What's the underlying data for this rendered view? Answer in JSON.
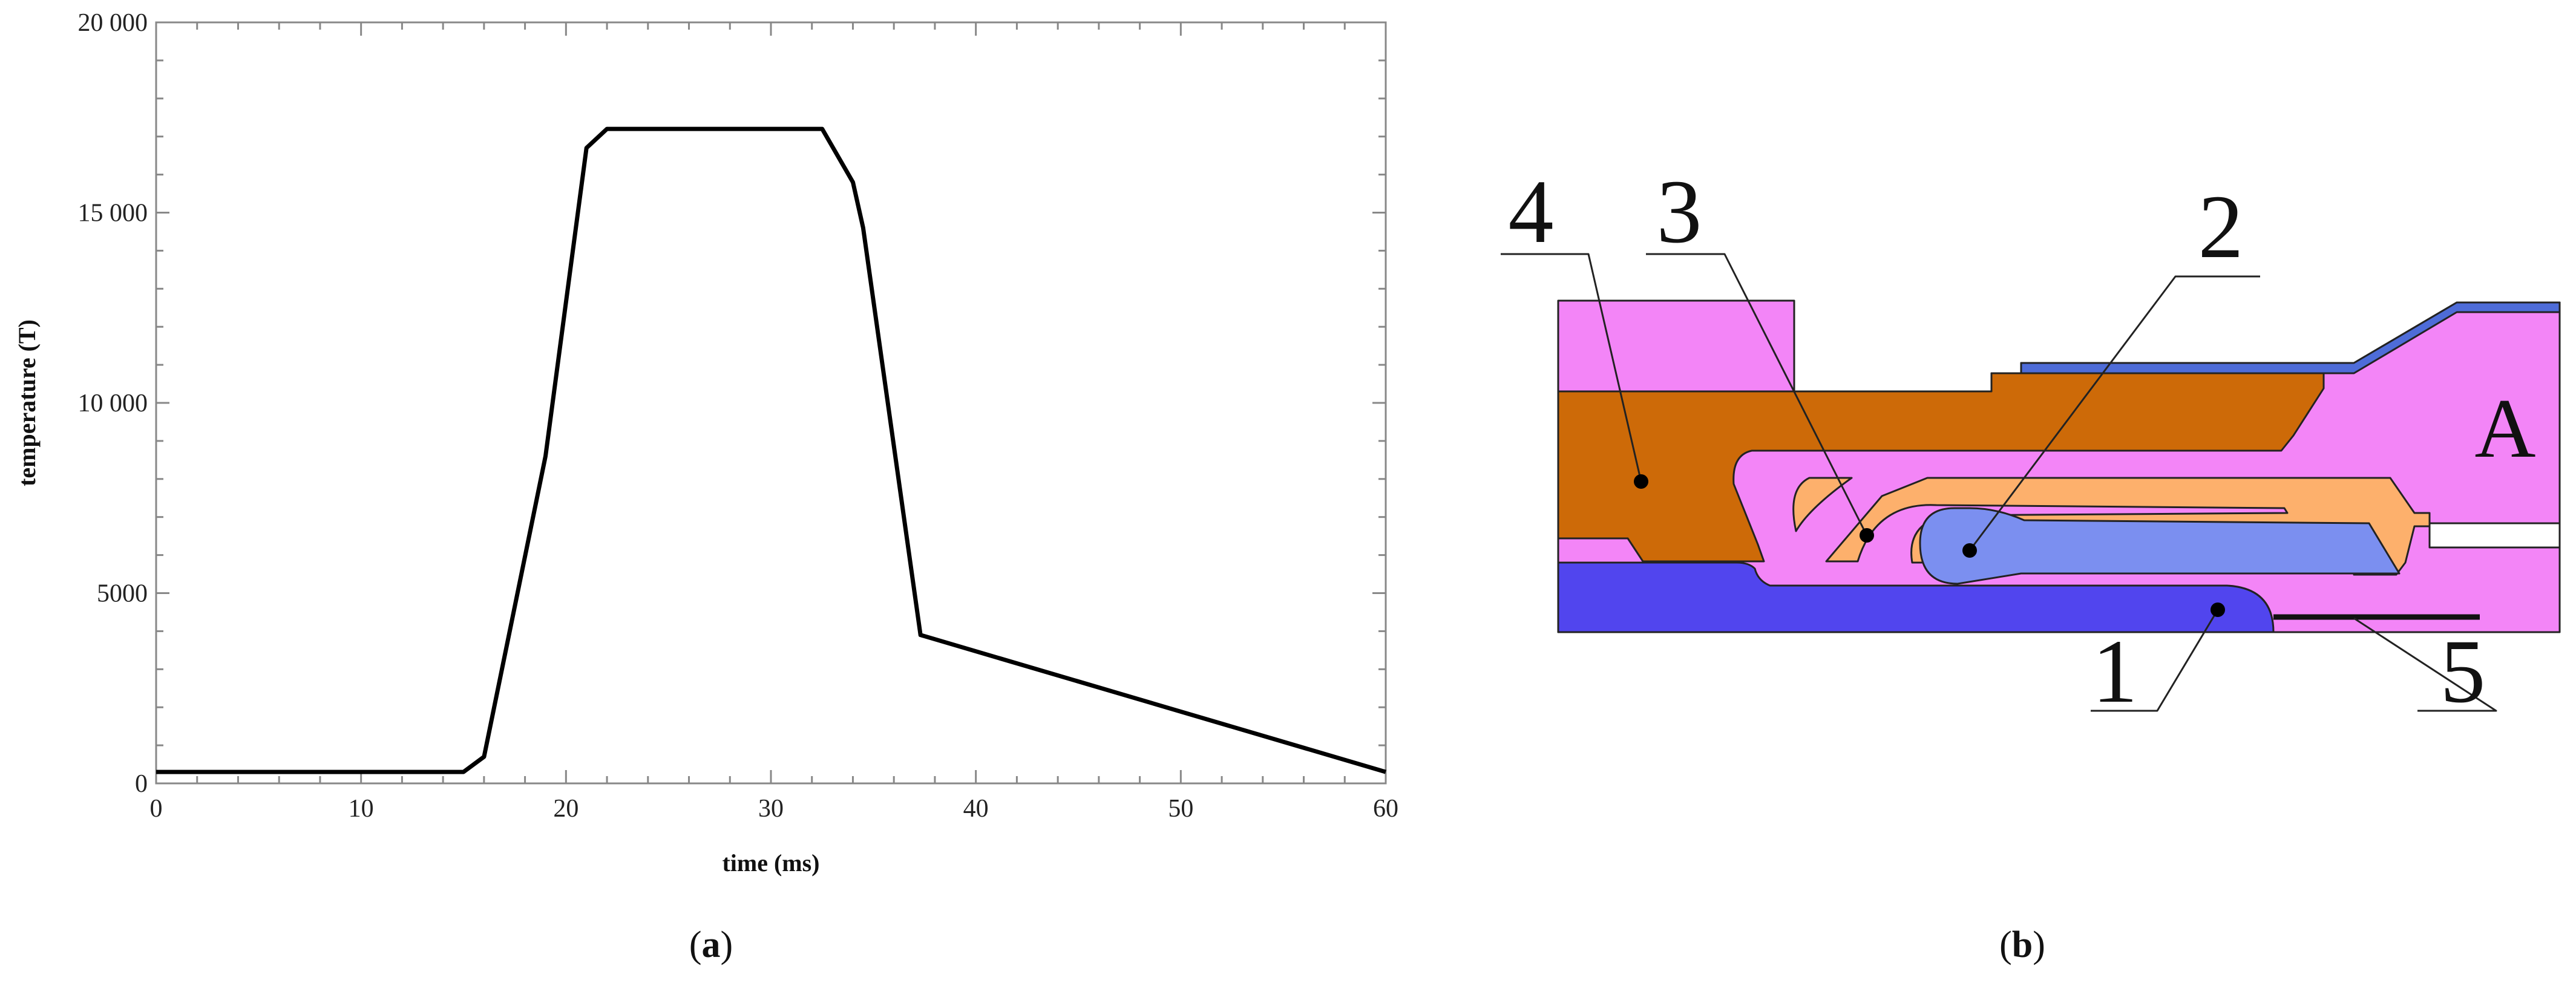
{
  "panel_a": {
    "caption_open": "(",
    "caption_letter": "a",
    "caption_close": ")"
  },
  "panel_b": {
    "caption_open": "(",
    "caption_letter": "b",
    "caption_close": ")",
    "part_labels": [
      "1",
      "2",
      "3",
      "4",
      "5"
    ],
    "region_label": "A",
    "colors": {
      "part_1": "#5145ee",
      "part_2": "#7b8ff0",
      "part_3": "#fdb06c",
      "part_4": "#cd6a08",
      "housing": "#f385f7",
      "top_strip": "#4e6cd8",
      "outline": "#222222"
    }
  },
  "chart_data": {
    "type": "line",
    "title": "",
    "xlabel": "time (ms)",
    "ylabel": "temperature (T)",
    "xlim": [
      0,
      60
    ],
    "ylim": [
      0,
      20000
    ],
    "xticks": [
      0,
      10,
      20,
      30,
      40,
      50,
      60
    ],
    "xtick_labels": [
      "0",
      "10",
      "20",
      "30",
      "40",
      "50",
      "60"
    ],
    "yticks": [
      0,
      5000,
      10000,
      15000,
      20000
    ],
    "ytick_labels": [
      "0",
      "5000",
      "10 000",
      "15 000",
      "20 000"
    ],
    "grid": false,
    "legend": "none",
    "line_color": "#000000",
    "series": [
      {
        "x": [
          0,
          15,
          16,
          19,
          21,
          22,
          32.5,
          34,
          34.5,
          37.3,
          60
        ],
        "y": [
          300,
          300,
          700,
          8600,
          16700,
          17200,
          17200,
          15800,
          14600,
          3900,
          300
        ]
      }
    ]
  }
}
